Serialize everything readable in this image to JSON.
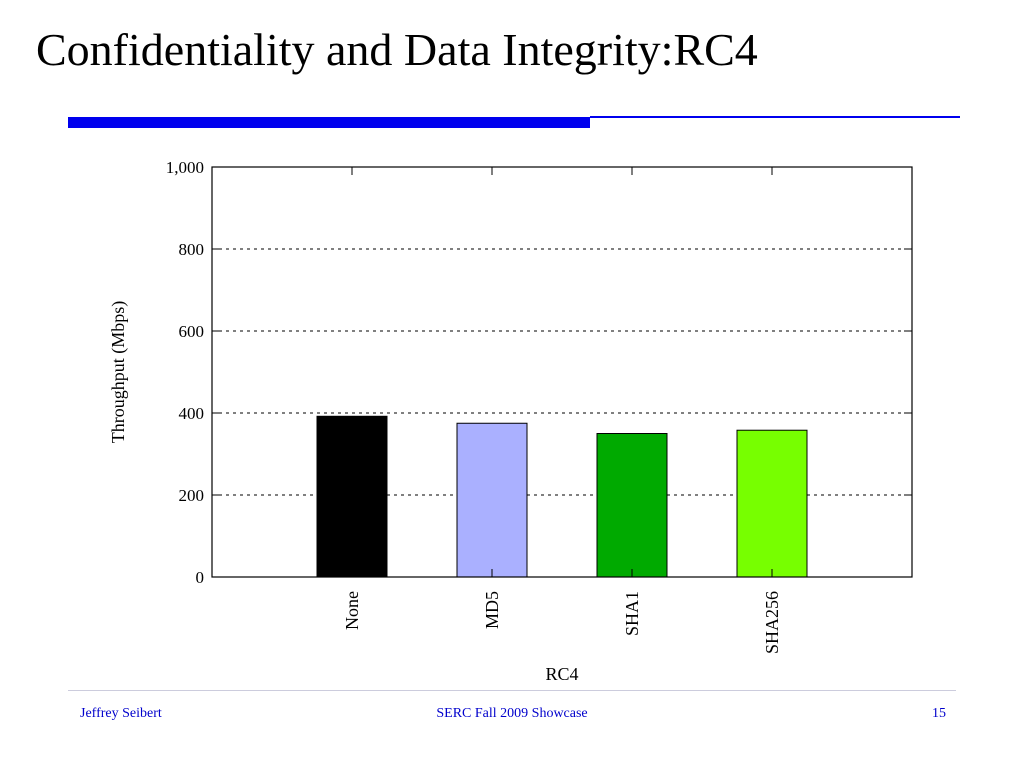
{
  "slide": {
    "title": "Confidentiality and Data Integrity:RC4",
    "accent_color": "#0000ee"
  },
  "footer": {
    "author": "Jeffrey Seibert",
    "event": "SERC Fall 2009 Showcase",
    "page_number": "15",
    "color": "#0000cc"
  },
  "chart_data": {
    "type": "bar",
    "title": "",
    "xlabel": "RC4",
    "ylabel": "Throughput (Mbps)",
    "categories": [
      "None",
      "MD5",
      "SHA1",
      "SHA256"
    ],
    "values": [
      392,
      375,
      350,
      358
    ],
    "colors": [
      "#000000",
      "#aab0ff",
      "#00aa00",
      "#77ff00"
    ],
    "ylim": [
      0,
      1000
    ],
    "yticks": [
      {
        "value": 0,
        "label": "0"
      },
      {
        "value": 200,
        "label": "200"
      },
      {
        "value": 400,
        "label": "400"
      },
      {
        "value": 600,
        "label": "600"
      },
      {
        "value": 800,
        "label": "800"
      },
      {
        "value": 1000,
        "label": "1,000"
      }
    ],
    "grid": "horizontal dotted",
    "legend": "none"
  }
}
